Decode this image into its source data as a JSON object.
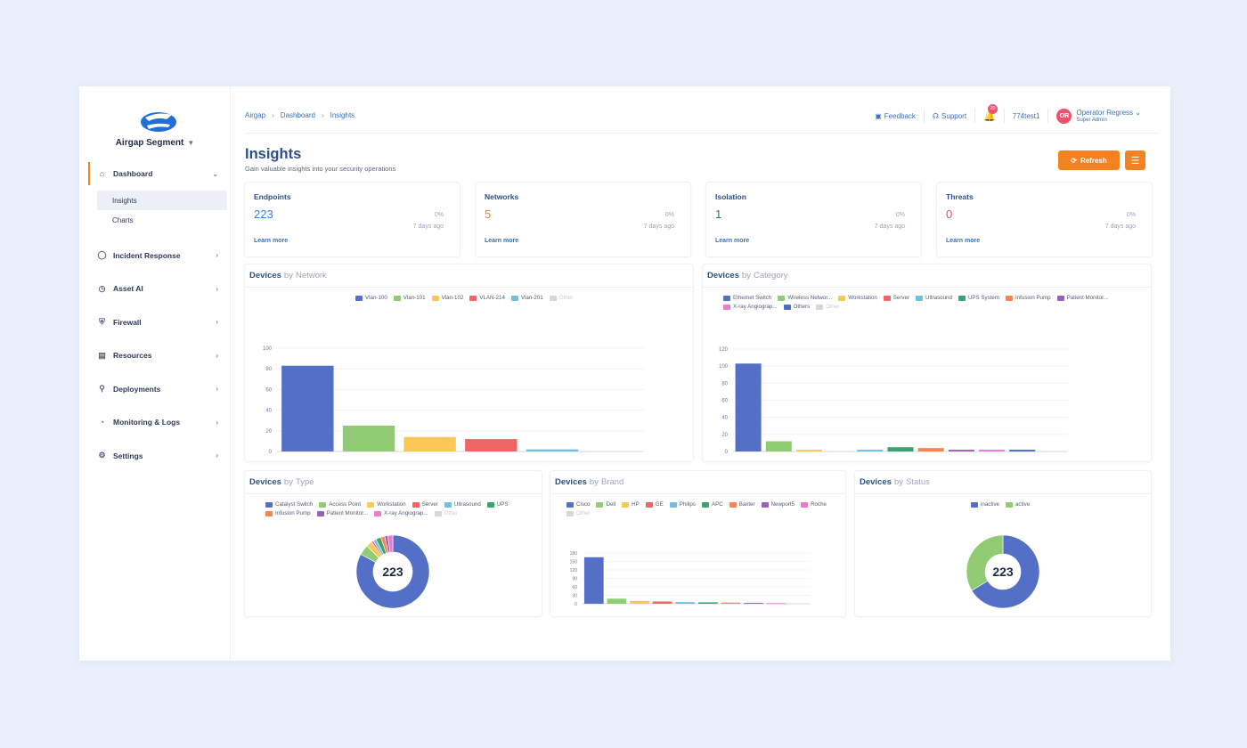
{
  "sidebar": {
    "segment": "Airgap Segment",
    "items": [
      {
        "label": "Dashboard",
        "icon": "home-icon"
      },
      {
        "label": "Incident Response",
        "icon": "shield-icon"
      },
      {
        "label": "Asset AI",
        "icon": "clock-icon"
      },
      {
        "label": "Firewall",
        "icon": "shield-check-icon"
      },
      {
        "label": "Resources",
        "icon": "list-icon"
      },
      {
        "label": "Deployments",
        "icon": "rocket-icon"
      },
      {
        "label": "Monitoring & Logs",
        "icon": "gauge-icon"
      },
      {
        "label": "Settings",
        "icon": "gear-icon"
      }
    ],
    "subitems": [
      "Insights",
      "Charts"
    ]
  },
  "breadcrumb": [
    "Airgap",
    "Dashboard",
    "Insights"
  ],
  "header": {
    "feedback": "Feedback",
    "support": "Support",
    "notif_count": "20",
    "tenant": "774test1",
    "avatar": "OR",
    "user_name": "Operator Regress",
    "user_role": "Super Admin"
  },
  "page": {
    "title": "Insights",
    "subtitle": "Gain valuable insights into your security operations",
    "refresh": "Refresh"
  },
  "stats": [
    {
      "label": "Endpoints",
      "value": "223",
      "pct": "0%",
      "ago": "7 days ago",
      "learn": "Learn more",
      "color": "#3a7bd5"
    },
    {
      "label": "Networks",
      "value": "5",
      "pct": "0%",
      "ago": "7 days ago",
      "learn": "Learn more",
      "color": "#f58220"
    },
    {
      "label": "Isolation",
      "value": "1",
      "pct": "0%",
      "ago": "7 days ago",
      "learn": "Learn more",
      "color": "#2f6f73"
    },
    {
      "label": "Threats",
      "value": "0",
      "pct": "0%",
      "ago": "7 days ago",
      "learn": "Learn more",
      "color": "#e8465f"
    }
  ],
  "panels": {
    "network": {
      "pre": "Devices",
      "by": "by",
      "post": "Network"
    },
    "category": {
      "pre": "Devices",
      "by": "by",
      "post": "Category"
    },
    "type": {
      "pre": "Devices",
      "by": "by",
      "post": "Type"
    },
    "brand": {
      "pre": "Devices",
      "by": "by",
      "post": "Brand"
    },
    "status": {
      "pre": "Devices",
      "by": "by",
      "post": "Status"
    }
  },
  "chart_data": [
    {
      "id": "network",
      "type": "bar",
      "title": "Devices by Network",
      "categories": [
        "Vlan-100",
        "Vlan-101",
        "Vlan-102",
        "VLAN-214",
        "Vlan-201",
        "Other"
      ],
      "values": [
        83,
        25,
        14,
        12,
        2,
        0
      ],
      "colors": [
        "#5470c6",
        "#91cc75",
        "#fac858",
        "#ee6666",
        "#73c0de",
        "#d3d6dc"
      ],
      "ylim": [
        0,
        100
      ],
      "yticks": [
        0,
        20,
        40,
        60,
        80,
        100
      ]
    },
    {
      "id": "category",
      "type": "bar",
      "title": "Devices by Category",
      "categories": [
        "Ethernet Switch",
        "Wireless Networ...",
        "Workstation",
        "Server",
        "Ultrasound",
        "UPS System",
        "Infusion Pump",
        "Patient Monitor...",
        "X-ray Angiograp...",
        "Others",
        "Other"
      ],
      "values": [
        103,
        12,
        2,
        0,
        2,
        5,
        4,
        2,
        2,
        2,
        0
      ],
      "colors": [
        "#5470c6",
        "#91cc75",
        "#fac858",
        "#ee6666",
        "#73c0de",
        "#3ba272",
        "#fc8452",
        "#9a60b4",
        "#ea7ccc",
        "#4a6bd0",
        "#d3d6dc"
      ],
      "ylim": [
        0,
        120
      ],
      "yticks": [
        0,
        20,
        40,
        60,
        80,
        100,
        120
      ]
    },
    {
      "id": "type",
      "type": "pie",
      "title": "Devices by Type",
      "center_label": "223",
      "categories": [
        "Catalyst Switch",
        "Access Point",
        "Workstation",
        "Server",
        "Ultrasound",
        "UPS",
        "Infusion Pump",
        "Patient Monitor...",
        "X-ray Angiograp...",
        "Other"
      ],
      "values": [
        185,
        10,
        6,
        2,
        3,
        5,
        4,
        3,
        5,
        0
      ],
      "colors": [
        "#5470c6",
        "#91cc75",
        "#fac858",
        "#ee6666",
        "#73c0de",
        "#3ba272",
        "#fc8452",
        "#9a60b4",
        "#ea7ccc",
        "#d3d6dc"
      ]
    },
    {
      "id": "brand",
      "type": "bar",
      "title": "Devices by Brand",
      "categories": [
        "Cisco",
        "Dell",
        "HP",
        "GE",
        "Philips",
        "APC",
        "Baxter",
        "Newport5",
        "Roche",
        "Other"
      ],
      "values": [
        165,
        18,
        10,
        8,
        6,
        5,
        4,
        3,
        2,
        0
      ],
      "colors": [
        "#5470c6",
        "#91cc75",
        "#fac858",
        "#ee6666",
        "#73c0de",
        "#3ba272",
        "#fc8452",
        "#9a60b4",
        "#ea7ccc",
        "#d3d6dc"
      ],
      "ylim": [
        0,
        180
      ],
      "yticks": [
        0,
        30,
        60,
        90,
        120,
        150,
        180
      ]
    },
    {
      "id": "status",
      "type": "pie",
      "title": "Devices by Status",
      "center_label": "223",
      "categories": [
        "inactive",
        "active"
      ],
      "values": [
        148,
        75
      ],
      "colors": [
        "#5470c6",
        "#91cc75"
      ]
    }
  ]
}
